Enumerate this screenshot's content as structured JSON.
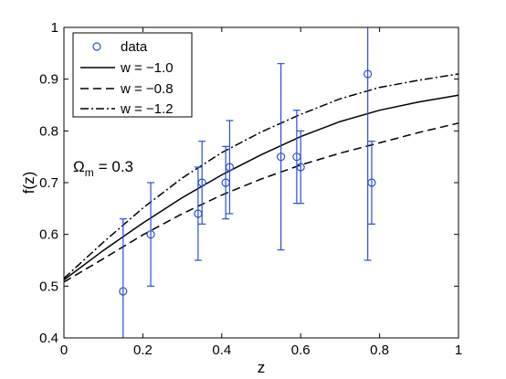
{
  "chart_data": {
    "type": "scatter",
    "xlabel": "z",
    "ylabel": "f(z)",
    "xlim": [
      0,
      1
    ],
    "ylim": [
      0.4,
      1.0
    ],
    "xticks": [
      "0",
      "0.2",
      "0.4",
      "0.6",
      "0.8",
      "1"
    ],
    "yticks": [
      "0.4",
      "0.5",
      "0.6",
      "0.7",
      "0.8",
      "0.9",
      "1"
    ],
    "grid": false,
    "legend_position": "top-left",
    "annotation": {
      "symbol": "Ω",
      "subscript": "m",
      "text": "= 0.3"
    },
    "colors": {
      "data": "#2b4fd6",
      "lines": "#000000"
    },
    "data": {
      "name": "data",
      "points": [
        {
          "x": 0.15,
          "y": 0.49,
          "err": 0.14
        },
        {
          "x": 0.22,
          "y": 0.6,
          "err": 0.1
        },
        {
          "x": 0.34,
          "y": 0.64,
          "err": 0.09
        },
        {
          "x": 0.35,
          "y": 0.7,
          "err": 0.08
        },
        {
          "x": 0.41,
          "y": 0.7,
          "err": 0.07
        },
        {
          "x": 0.42,
          "y": 0.73,
          "err": 0.09
        },
        {
          "x": 0.55,
          "y": 0.75,
          "err": 0.18
        },
        {
          "x": 0.59,
          "y": 0.75,
          "err": 0.09
        },
        {
          "x": 0.6,
          "y": 0.73,
          "err": 0.07
        },
        {
          "x": 0.77,
          "y": 0.91,
          "err": 0.36
        },
        {
          "x": 0.78,
          "y": 0.7,
          "err": 0.08
        }
      ]
    },
    "series": [
      {
        "name": "w = −1.0",
        "style": "solid",
        "x": [
          0,
          0.1,
          0.2,
          0.3,
          0.4,
          0.5,
          0.6,
          0.7,
          0.8,
          0.9,
          1.0
        ],
        "y": [
          0.512,
          0.569,
          0.622,
          0.671,
          0.715,
          0.754,
          0.789,
          0.818,
          0.84,
          0.856,
          0.869
        ]
      },
      {
        "name": "w = −0.8",
        "style": "dashed",
        "x": [
          0,
          0.1,
          0.2,
          0.3,
          0.4,
          0.5,
          0.6,
          0.7,
          0.8,
          0.9,
          1.0
        ],
        "y": [
          0.508,
          0.553,
          0.599,
          0.64,
          0.676,
          0.707,
          0.734,
          0.757,
          0.777,
          0.797,
          0.815
        ]
      },
      {
        "name": "w = −1.2",
        "style": "dashdot",
        "x": [
          0,
          0.1,
          0.2,
          0.3,
          0.4,
          0.5,
          0.6,
          0.7,
          0.8,
          0.9,
          1.0
        ],
        "y": [
          0.515,
          0.585,
          0.651,
          0.709,
          0.758,
          0.798,
          0.832,
          0.862,
          0.884,
          0.898,
          0.91
        ]
      }
    ]
  }
}
